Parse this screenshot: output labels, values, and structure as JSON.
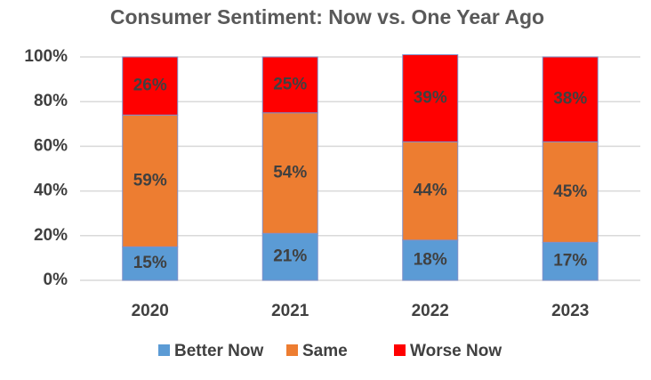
{
  "chart_data": {
    "type": "stacked_bar",
    "title": "Consumer Sentiment: Now vs. One Year Ago",
    "categories": [
      "2020",
      "2021",
      "2022",
      "2023"
    ],
    "series": [
      {
        "name": "Better Now",
        "color": "#5b9bd5",
        "values": [
          15,
          21,
          18,
          17
        ],
        "value_labels": [
          "15%",
          "21%",
          "18%",
          "17%"
        ]
      },
      {
        "name": "Same",
        "color": "#ed7d31",
        "values": [
          59,
          54,
          44,
          45
        ],
        "value_labels": [
          "59%",
          "54%",
          "44%",
          "45%"
        ]
      },
      {
        "name": "Worse Now",
        "color": "#ff0000",
        "values": [
          26,
          25,
          39,
          38
        ],
        "value_labels": [
          "26%",
          "25%",
          "39%",
          "38%"
        ]
      }
    ],
    "ylim": [
      0,
      100
    ],
    "yticks": [
      {
        "value": 0,
        "label": "0%"
      },
      {
        "value": 20,
        "label": "20%"
      },
      {
        "value": 40,
        "label": "40%"
      },
      {
        "value": 60,
        "label": "60%"
      },
      {
        "value": 80,
        "label": "80%"
      },
      {
        "value": 100,
        "label": "100%"
      }
    ],
    "grid": true,
    "legend": "bottom"
  }
}
